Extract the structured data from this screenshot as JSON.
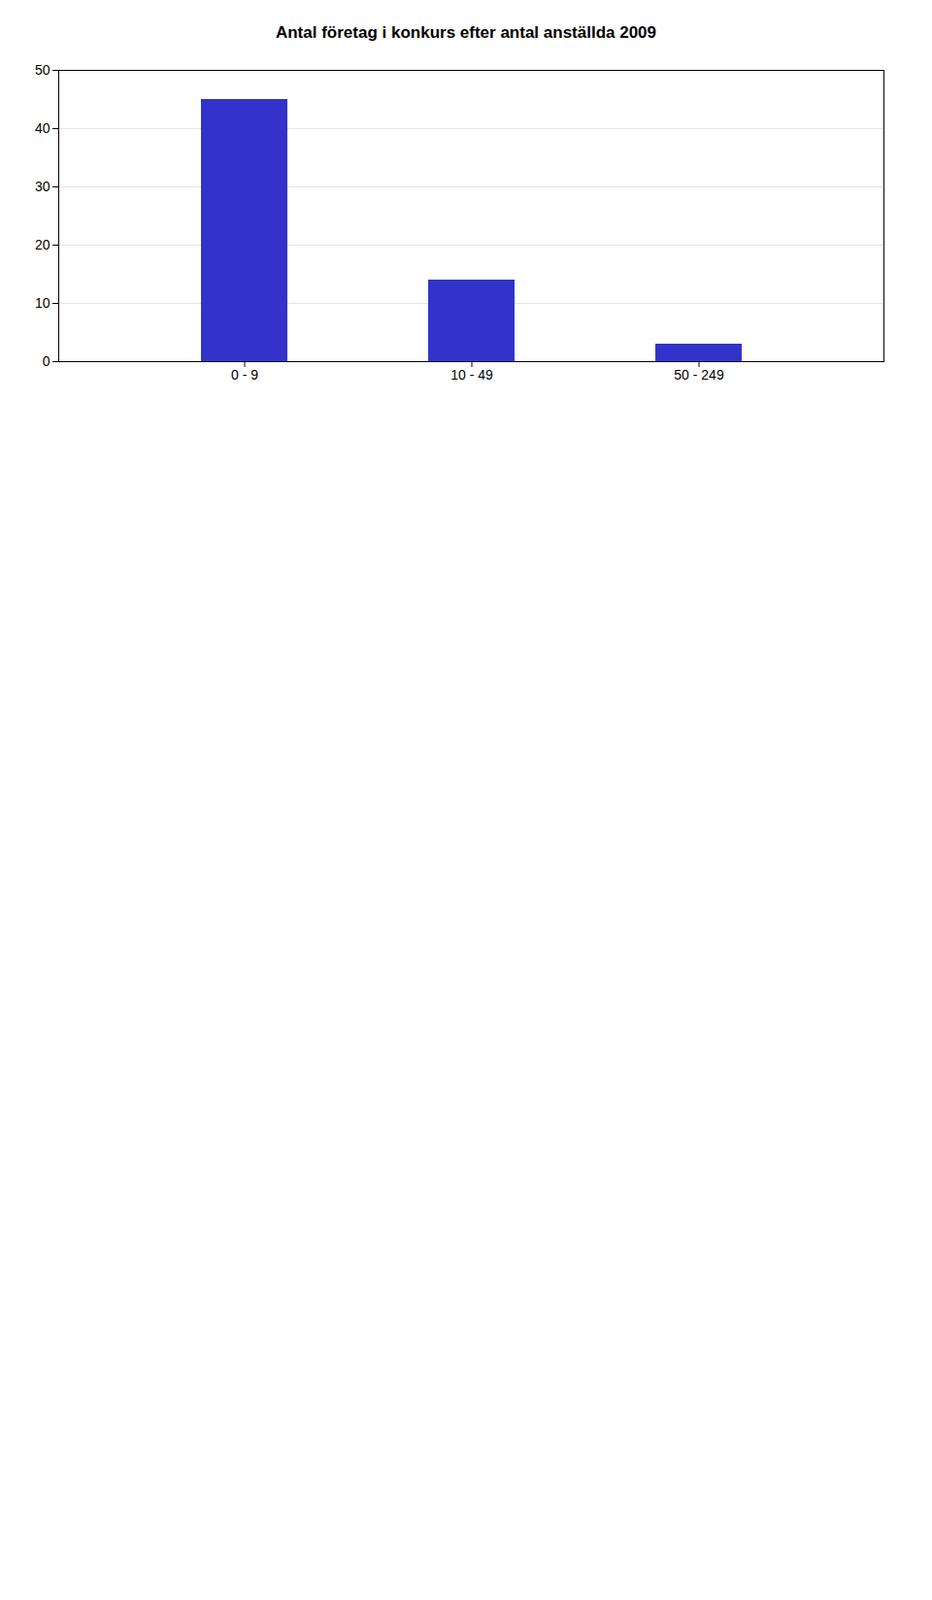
{
  "chart_data": {
    "type": "bar",
    "title": "Antal företag i konkurs efter antal anställda 2009",
    "categories": [
      "0 - 9",
      "10 - 49",
      "50 - 249"
    ],
    "values": [
      45,
      14,
      3
    ],
    "color": "#3333cc",
    "ylim": [
      0,
      50
    ],
    "yticks": [
      0,
      10,
      20,
      30,
      40,
      50
    ],
    "grid": true
  }
}
